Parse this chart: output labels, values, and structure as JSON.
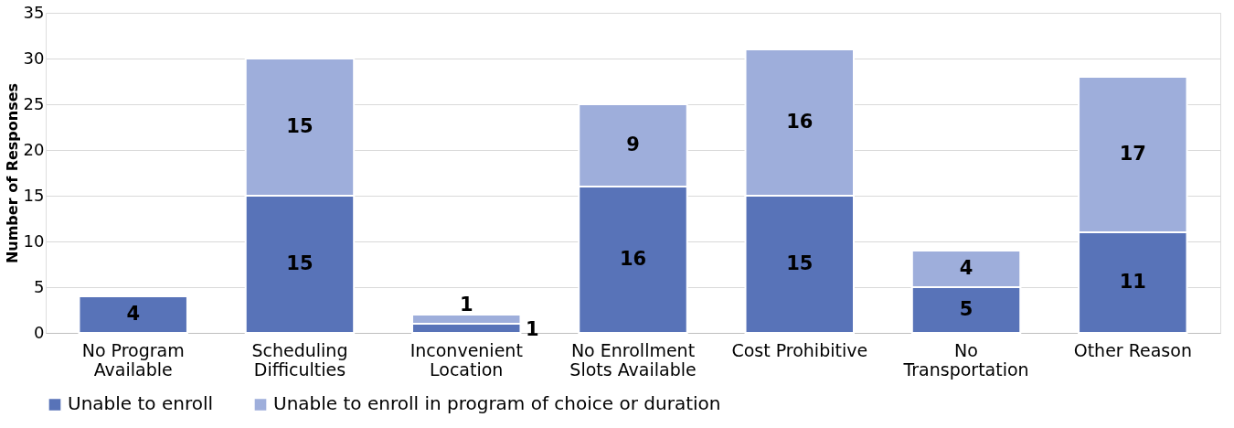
{
  "chart_data": {
    "type": "bar",
    "stacked": true,
    "ylabel": "Number of Responses",
    "categories": [
      "No Program Available",
      "Scheduling Difficulties",
      "Inconvenient Location",
      "No Enrollment Slots Available",
      "Cost Prohibitive",
      "No Transportation",
      "Other Reason"
    ],
    "series": [
      {
        "name": "Unable to enroll",
        "color": "#5873b8",
        "values": [
          4,
          15,
          1,
          16,
          15,
          5,
          11
        ]
      },
      {
        "name": "Unable to enroll in program of choice or duration",
        "color": "#9eaedb",
        "values": [
          null,
          15,
          1,
          9,
          16,
          4,
          17
        ]
      }
    ],
    "ylim": [
      0,
      35
    ],
    "yticks": [
      0,
      5,
      10,
      15,
      20,
      25,
      30,
      35
    ],
    "grid": "y",
    "legend": "bottom",
    "data_labels": true
  }
}
